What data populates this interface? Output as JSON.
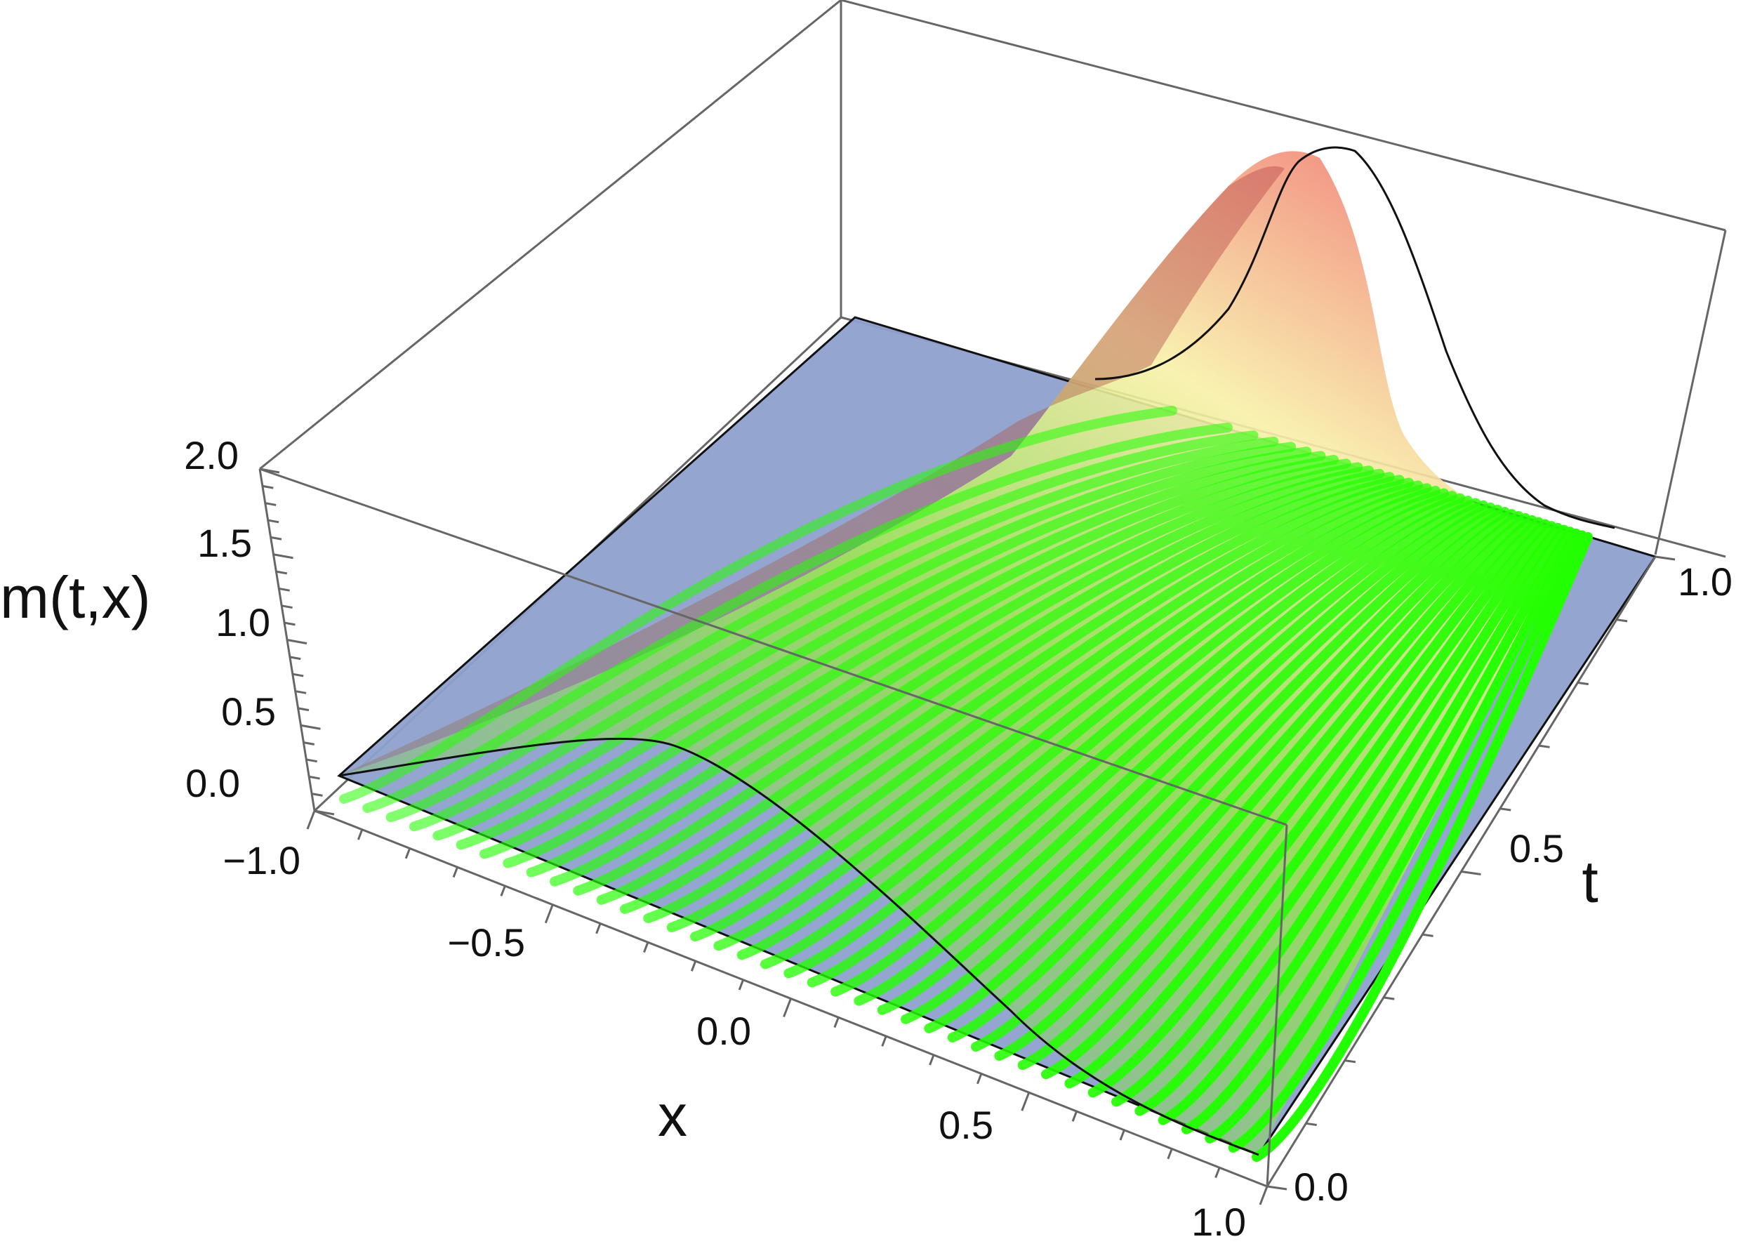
{
  "chart_data": {
    "type": "surface3d",
    "title": "",
    "xlabel": "x",
    "ylabel": "t",
    "zlabel": "m(t,x)",
    "xlim": [
      -1.0,
      1.0
    ],
    "ylim": [
      0.0,
      1.0
    ],
    "zlim": [
      0.0,
      2.0
    ],
    "x_ticks": [
      "−1.0",
      "−0.5",
      "0.0",
      "0.5",
      "1.0"
    ],
    "t_ticks": [
      "0.0",
      "0.5",
      "1.0"
    ],
    "z_ticks": [
      "0.0",
      "0.5",
      "1.0",
      "1.5",
      "2.0"
    ],
    "surfaces": [
      {
        "name": "",
        "kind": "density surface",
        "colors": [
          "#f08080",
          "#f8f0a0",
          "#8fe040"
        ]
      },
      {
        "name": "",
        "kind": "plane",
        "color": "#8ea0cc",
        "z": 0.0
      }
    ],
    "curve_color": "#22ff00",
    "characteristic_curves": 40,
    "initial_profile_t0": {
      "x": [
        -1.0,
        -0.8,
        -0.6,
        -0.4,
        -0.2,
        0.0,
        0.2,
        0.4,
        0.6,
        0.8,
        1.0
      ],
      "m": [
        0.0,
        0.12,
        0.25,
        0.32,
        0.3,
        0.22,
        0.13,
        0.05,
        0.0,
        0.0,
        0.0
      ]
    },
    "final_profile_t1": {
      "x": [
        -1.0,
        -0.6,
        -0.2,
        0.2,
        0.4,
        0.6,
        0.7,
        0.8,
        0.9,
        1.0
      ],
      "m": [
        0.0,
        0.0,
        0.0,
        0.02,
        0.15,
        0.9,
        1.7,
        1.6,
        0.4,
        0.0
      ]
    },
    "grid": false,
    "legend": "none"
  }
}
